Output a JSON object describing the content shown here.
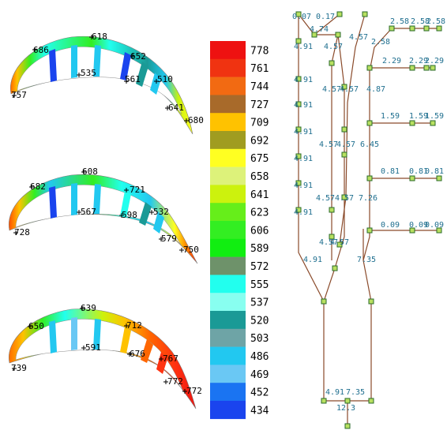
{
  "blades": [
    {
      "labels": [
        {
          "name": "blade1-label-686",
          "text": "686"
        },
        {
          "name": "blade1-label-618",
          "text": "618"
        },
        {
          "name": "blade1-label-652",
          "text": "652"
        },
        {
          "name": "blade1-label-535",
          "text": "535"
        },
        {
          "name": "blade1-label-561",
          "text": "561"
        },
        {
          "name": "blade1-label-510",
          "text": "510"
        },
        {
          "name": "blade1-label-757",
          "text": "757"
        },
        {
          "name": "blade1-label-641",
          "text": "641"
        },
        {
          "name": "blade1-label-680",
          "text": "680"
        }
      ]
    },
    {
      "labels": [
        {
          "name": "blade2-label-608",
          "text": "608"
        },
        {
          "name": "blade2-label-682",
          "text": "682"
        },
        {
          "name": "blade2-label-721",
          "text": "721"
        },
        {
          "name": "blade2-label-567",
          "text": "567"
        },
        {
          "name": "blade2-label-598",
          "text": "598"
        },
        {
          "name": "blade2-label-532",
          "text": "532"
        },
        {
          "name": "blade2-label-728",
          "text": "728"
        },
        {
          "name": "blade2-label-579",
          "text": "579"
        },
        {
          "name": "blade2-label-750",
          "text": "750"
        }
      ]
    },
    {
      "labels": [
        {
          "name": "blade3-label-639",
          "text": "639"
        },
        {
          "name": "blade3-label-650",
          "text": "650"
        },
        {
          "name": "blade3-label-712",
          "text": "712"
        },
        {
          "name": "blade3-label-591",
          "text": "591"
        },
        {
          "name": "blade3-label-676",
          "text": "676"
        },
        {
          "name": "blade3-label-767",
          "text": "767"
        },
        {
          "name": "blade3-label-739",
          "text": "739"
        },
        {
          "name": "blade3-label-772a",
          "text": "772"
        },
        {
          "name": "blade3-label-772b",
          "text": "772"
        }
      ]
    }
  ],
  "legend": [
    {
      "value": "778",
      "color": "#ee1111"
    },
    {
      "value": "761",
      "color": "#f03311"
    },
    {
      "value": "744",
      "color": "#f26a12"
    },
    {
      "value": "727",
      "color": "#a86a2a"
    },
    {
      "value": "709",
      "color": "#ffc200"
    },
    {
      "value": "692",
      "color": "#a09c20"
    },
    {
      "value": "675",
      "color": "#ffff22"
    },
    {
      "value": "658",
      "color": "#ddf27a"
    },
    {
      "value": "641",
      "color": "#ccf20d"
    },
    {
      "value": "623",
      "color": "#66ee1a"
    },
    {
      "value": "606",
      "color": "#33ee22"
    },
    {
      "value": "589",
      "color": "#11ee11"
    },
    {
      "value": "572",
      "color": "#6e926a"
    },
    {
      "value": "555",
      "color": "#22ffee"
    },
    {
      "value": "537",
      "color": "#88fff0"
    },
    {
      "value": "520",
      "color": "#1a9a96"
    },
    {
      "value": "503",
      "color": "#6ea4a6"
    },
    {
      "value": "486",
      "color": "#22c8f0"
    },
    {
      "value": "469",
      "color": "#6ac8f4"
    },
    {
      "value": "452",
      "color": "#1a74f2"
    },
    {
      "value": "434",
      "color": "#1a44ee"
    }
  ],
  "network": {
    "labels": [
      {
        "name": "net-label-0.07",
        "text": "0.07"
      },
      {
        "name": "net-label-0.17",
        "text": "0.17"
      },
      {
        "name": "net-label-4.74",
        "text": "4.74"
      },
      {
        "name": "net-label-4.57-top",
        "text": "4.57"
      },
      {
        "name": "net-label-2.58-a",
        "text": "2.58"
      },
      {
        "name": "net-label-2.58-b",
        "text": "2.58"
      },
      {
        "name": "net-label-2.58-c",
        "text": "2.58"
      },
      {
        "name": "net-label-2.58-d",
        "text": "2.58"
      },
      {
        "name": "net-label-4.91-a",
        "text": "4.91"
      },
      {
        "name": "net-label-4.57-b",
        "text": "4.57"
      },
      {
        "name": "net-label-2.29-a",
        "text": "2.29"
      },
      {
        "name": "net-label-2.29-b",
        "text": "2.29"
      },
      {
        "name": "net-label-2.29-c",
        "text": "2.29"
      },
      {
        "name": "net-label-4.91-b",
        "text": "4.91"
      },
      {
        "name": "net-label-4.57-c",
        "text": "4.57"
      },
      {
        "name": "net-label-4.57-d",
        "text": "4.57"
      },
      {
        "name": "net-label-4.87",
        "text": "4.87"
      },
      {
        "name": "net-label-4.91-c",
        "text": "4.91"
      },
      {
        "name": "net-label-1.59-a",
        "text": "1.59"
      },
      {
        "name": "net-label-1.59-b",
        "text": "1.59"
      },
      {
        "name": "net-label-1.59-c",
        "text": "1.59"
      },
      {
        "name": "net-label-4.91-d",
        "text": "4.91"
      },
      {
        "name": "net-label-4.57-e",
        "text": "4.57"
      },
      {
        "name": "net-label-4.57-f",
        "text": "4.57"
      },
      {
        "name": "net-label-6.45",
        "text": "6.45"
      },
      {
        "name": "net-label-4.91-e",
        "text": "4.91"
      },
      {
        "name": "net-label-0.81-a",
        "text": "0.81"
      },
      {
        "name": "net-label-0.81-b",
        "text": "0.81"
      },
      {
        "name": "net-label-0.81-c",
        "text": "0.81"
      },
      {
        "name": "net-label-4.91-f",
        "text": "4.91"
      },
      {
        "name": "net-label-4.57-g",
        "text": "4.57"
      },
      {
        "name": "net-label-4.57-h",
        "text": "4.57"
      },
      {
        "name": "net-label-7.26",
        "text": "7.26"
      },
      {
        "name": "net-label-4.91-g",
        "text": "4.91"
      },
      {
        "name": "net-label-0.09-a",
        "text": "0.09"
      },
      {
        "name": "net-label-0.09-b",
        "text": "0.09"
      },
      {
        "name": "net-label-0.09-c",
        "text": "0.09"
      },
      {
        "name": "net-label-4.57-i",
        "text": "4.57"
      },
      {
        "name": "net-label-4.57-j",
        "text": "4.57"
      },
      {
        "name": "net-label-4.91-h",
        "text": "4.91"
      },
      {
        "name": "net-label-7.35-a",
        "text": "7.35"
      },
      {
        "name": "net-label-4.91-i",
        "text": "4.91"
      },
      {
        "name": "net-label-7.35-b",
        "text": "7.35"
      },
      {
        "name": "net-label-12.3",
        "text": "12.3"
      }
    ]
  }
}
